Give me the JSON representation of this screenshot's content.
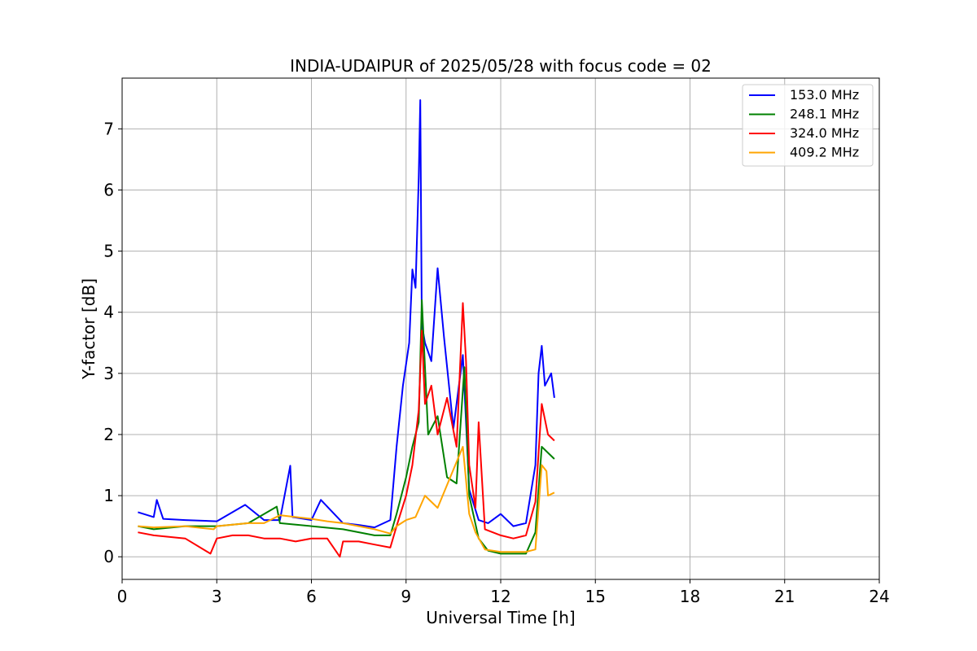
{
  "chart_data": {
    "type": "line",
    "title": "INDIA-UDAIPUR of 2025/05/28 with focus code = 02",
    "xlabel": "Universal Time [h]",
    "ylabel": "Y-factor [dB]",
    "xlim": [
      0,
      24
    ],
    "ylim": [
      -0.37,
      7.83
    ],
    "xticks": [
      0,
      3,
      6,
      9,
      12,
      15,
      18,
      21,
      24
    ],
    "yticks": [
      0,
      1,
      2,
      3,
      4,
      5,
      6,
      7
    ],
    "grid": true,
    "legend_position": "top-right",
    "series": [
      {
        "name": "153.0 MHz",
        "color": "#0000ff",
        "x": [
          0.5,
          1.0,
          1.1,
          1.3,
          2.0,
          3.0,
          3.9,
          4.5,
          5.0,
          5.33,
          5.4,
          6.0,
          6.3,
          7.0,
          7.5,
          8.0,
          8.5,
          8.7,
          8.9,
          9.1,
          9.2,
          9.3,
          9.4,
          9.45,
          9.5,
          9.6,
          9.8,
          10.0,
          10.2,
          10.5,
          10.8,
          11.0,
          11.3,
          11.6,
          12.0,
          12.4,
          12.8,
          13.1,
          13.2,
          13.3,
          13.4,
          13.6,
          13.7
        ],
        "y": [
          0.73,
          0.65,
          0.93,
          0.62,
          0.6,
          0.58,
          0.85,
          0.6,
          0.6,
          1.49,
          0.65,
          0.6,
          0.93,
          0.55,
          0.52,
          0.48,
          0.6,
          1.8,
          2.8,
          3.5,
          4.7,
          4.4,
          6.2,
          7.47,
          3.8,
          3.5,
          3.2,
          4.72,
          3.6,
          2.1,
          3.3,
          1.1,
          0.6,
          0.55,
          0.7,
          0.5,
          0.55,
          1.5,
          3.0,
          3.45,
          2.8,
          3.0,
          2.6
        ]
      },
      {
        "name": "248.1 MHz",
        "color": "#008000",
        "x": [
          0.5,
          1.0,
          2.0,
          3.0,
          4.0,
          4.9,
          5.0,
          6.0,
          7.0,
          8.0,
          8.5,
          8.7,
          9.0,
          9.2,
          9.4,
          9.5,
          9.7,
          10.0,
          10.3,
          10.6,
          10.85,
          11.0,
          11.3,
          11.6,
          12.0,
          12.4,
          12.8,
          13.1,
          13.3,
          13.5,
          13.7
        ],
        "y": [
          0.5,
          0.45,
          0.5,
          0.5,
          0.55,
          0.82,
          0.55,
          0.5,
          0.45,
          0.35,
          0.35,
          0.7,
          1.3,
          1.8,
          2.2,
          4.2,
          2.0,
          2.3,
          1.3,
          1.2,
          3.1,
          1.0,
          0.3,
          0.1,
          0.05,
          0.05,
          0.05,
          0.4,
          1.8,
          1.7,
          1.6
        ]
      },
      {
        "name": "324.0 MHz",
        "color": "#ff0000",
        "x": [
          0.5,
          1.0,
          2.0,
          2.8,
          3.0,
          3.5,
          4.0,
          4.5,
          5.0,
          5.5,
          6.0,
          6.5,
          6.9,
          7.0,
          7.5,
          8.0,
          8.5,
          8.7,
          9.0,
          9.2,
          9.4,
          9.5,
          9.6,
          9.8,
          10.0,
          10.3,
          10.6,
          10.8,
          10.9,
          11.0,
          11.2,
          11.3,
          11.5,
          12.0,
          12.4,
          12.8,
          13.1,
          13.3,
          13.5,
          13.7
        ],
        "y": [
          0.4,
          0.35,
          0.3,
          0.05,
          0.3,
          0.35,
          0.35,
          0.3,
          0.3,
          0.25,
          0.3,
          0.3,
          0.0,
          0.25,
          0.25,
          0.2,
          0.15,
          0.5,
          1.0,
          1.5,
          2.4,
          3.7,
          2.5,
          2.8,
          2.0,
          2.6,
          1.8,
          4.15,
          3.2,
          1.5,
          0.8,
          2.2,
          0.45,
          0.35,
          0.3,
          0.35,
          0.9,
          2.5,
          2.0,
          1.9
        ]
      },
      {
        "name": "409.2 MHz",
        "color": "#ffa500",
        "x": [
          0.5,
          1.0,
          2.0,
          2.9,
          3.0,
          4.0,
          4.5,
          5.0,
          5.5,
          6.0,
          6.5,
          7.0,
          7.5,
          8.0,
          8.5,
          8.7,
          9.0,
          9.3,
          9.6,
          10.0,
          10.4,
          10.8,
          11.0,
          11.2,
          11.5,
          12.0,
          12.4,
          12.8,
          13.1,
          13.3,
          13.45,
          13.5,
          13.7
        ],
        "y": [
          0.5,
          0.48,
          0.5,
          0.45,
          0.5,
          0.55,
          0.55,
          0.68,
          0.65,
          0.62,
          0.58,
          0.55,
          0.5,
          0.45,
          0.38,
          0.5,
          0.6,
          0.65,
          1.0,
          0.8,
          1.3,
          1.8,
          0.7,
          0.4,
          0.12,
          0.08,
          0.08,
          0.08,
          0.12,
          1.5,
          1.4,
          1.0,
          1.05
        ]
      }
    ]
  }
}
